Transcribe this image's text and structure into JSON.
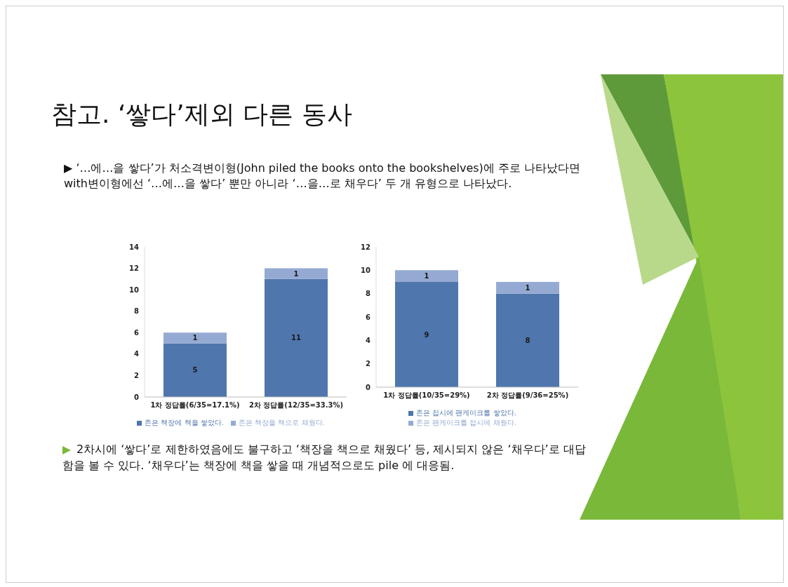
{
  "chart_data": [
    {
      "type": "bar",
      "title": "참고. ‘쌓다’제외 다른 동사",
      "subtitle": "▶ ‘…에…을 쌓다’가 처소격변이형(John piled the books onto the bookshelves)에 주로 나타났다면 with변이형에선 ‘…에…을 쌓다’ 뿐만 아니라 ‘…을…로 채우다’ 두 개 유형으로 나타났다.",
      "categories": [
        "1차 정답률(6/35=17.1%)",
        "2차 정답률(12/35=33.3%)"
      ],
      "series": [
        {
          "name": "존은 책장에 책을 쌓았다.",
          "color": "#4f76ad",
          "values": [
            5,
            11
          ]
        },
        {
          "name": "존은 책장을 책으로 채웠다.",
          "color": "#95aad3",
          "values": [
            1,
            1
          ]
        }
      ],
      "stacked": true,
      "ylim": [
        0,
        14
      ],
      "yticks": [
        0,
        2,
        4,
        6,
        8,
        10,
        12,
        14
      ],
      "data_labels": true,
      "legend": "bottom"
    },
    {
      "type": "bar",
      "categories": [
        "1차 정답률(10/35=29%)",
        "2차 정답률(9/36=25%)"
      ],
      "series": [
        {
          "name": "존은 접시에 팬케이크를 쌓았다.",
          "color": "#4f76ad",
          "values": [
            9,
            8
          ]
        },
        {
          "name": "존은 팬케이크를 접시에 채웠다.",
          "color": "#95aad3",
          "values": [
            1,
            1
          ]
        }
      ],
      "stacked": true,
      "ylim": [
        0,
        12
      ],
      "yticks": [
        0,
        2,
        4,
        6,
        8,
        10,
        12
      ],
      "data_labels": true,
      "legend": "bottom",
      "annotations": [
        "2차시에 ‘쌓다’로 제한하였음에도 불구하고 ‘책장을 책으로 채웠다’ 등, 제시되지 않은 ‘채우다’로 대답함을 볼 수 있다. ‘채우다’는 책장에 책을 쌓을 때 개념적으로도 pile 에 대응됨."
      ]
    }
  ]
}
